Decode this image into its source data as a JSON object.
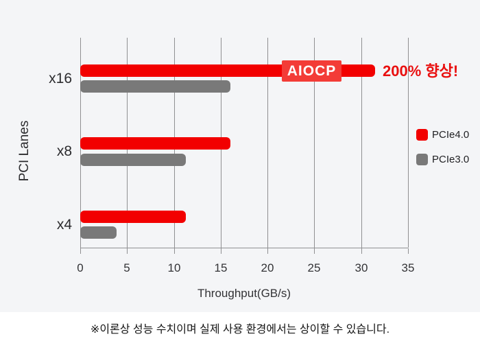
{
  "chart_data": {
    "type": "bar",
    "orientation": "horizontal",
    "categories": [
      "x16",
      "x8",
      "x4"
    ],
    "series": [
      {
        "name": "PCIe4.0",
        "values": [
          31.5,
          16,
          11.3
        ],
        "color": "#f20000"
      },
      {
        "name": "PCIe3.0",
        "values": [
          16,
          11.3,
          3.9
        ],
        "color": "#797979"
      }
    ],
    "xlabel": "Throughput(GB/s)",
    "ylabel": "PCI Lanes",
    "xlim": [
      0,
      35
    ],
    "xticks": [
      0,
      5,
      10,
      15,
      20,
      25,
      30,
      35
    ],
    "grid": "vertical",
    "legend_position": "right"
  },
  "annotations": {
    "badge": "AIOCP",
    "highlight": "200% 향상!"
  },
  "footer": {
    "disclaimer": "※이론상 성능 수치이며 실제 사용 환경에서는 상이할 수 있습니다."
  },
  "colors": {
    "background": "#f4f5f7",
    "footer_background": "#ffffff",
    "pcie4_red": "#f20000",
    "pcie3_gray": "#797979",
    "badge_background": "#f33c37",
    "highlight_text": "#e90f0f",
    "gridline": "#8f8f91",
    "text": "#333336"
  }
}
